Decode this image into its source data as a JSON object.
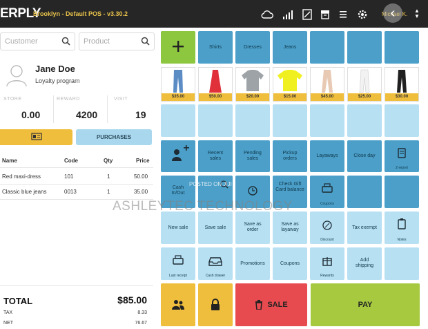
{
  "topbar": {
    "logo": "ERPLY",
    "title": "Brooklyn - Default POS - v3.30.2",
    "user": "Michael K.",
    "back_icon": "‹"
  },
  "search": {
    "customer_placeholder": "Customer",
    "product_placeholder": "Product"
  },
  "customer": {
    "name": "Jane Doe",
    "program": "Loyalty program",
    "stats": [
      {
        "label": "STORE",
        "value": "0.00"
      },
      {
        "label": "REWARD",
        "value": "4200"
      },
      {
        "label": "VISIT",
        "value": "19"
      }
    ],
    "purchases_label": "PURCHASES"
  },
  "cart": {
    "headers": {
      "name": "Name",
      "code": "Code",
      "qty": "Qty",
      "price": "Price"
    },
    "rows": [
      {
        "name": "Red maxi-dress",
        "code": "101",
        "qty": "1",
        "price": "50.00"
      },
      {
        "name": "Classic blue jeans",
        "code": "0013",
        "qty": "1",
        "price": "35.00"
      }
    ],
    "total_label": "TOTAL",
    "total_value": "$85.00",
    "tax_label": "TAX",
    "tax_value": "8.33",
    "net_label": "NET",
    "net_value": "76.67"
  },
  "categories": [
    "Shirts",
    "Dresses",
    "Jeans"
  ],
  "products": [
    {
      "price": "$35.00",
      "icon": "jeans-icon",
      "color": "#5b8cc4"
    },
    {
      "price": "$50.00",
      "icon": "dress-icon",
      "color": "#e0303a"
    },
    {
      "price": "$20.00",
      "icon": "shirt-icon",
      "color": "#9ea3a8"
    },
    {
      "price": "$15.00",
      "icon": "shirt-icon",
      "color": "#f0f020"
    },
    {
      "price": "$45.00",
      "icon": "pants-icon",
      "color": "#e8c9b4"
    },
    {
      "price": "$25.00",
      "icon": "pants-icon",
      "color": "#f2f2f2"
    },
    {
      "price": "$30.00",
      "icon": "pants-icon",
      "color": "#202020"
    }
  ],
  "actions_row1": {
    "recent": "Recent sales",
    "pending": "Pending sales",
    "pickup": "Pickup orders",
    "layaways": "Layaways",
    "close_day": "Close day",
    "z_report": "Z-report"
  },
  "actions_row2": {
    "cash": "Cash In/Out",
    "giftcard": "Check Gift Card balance",
    "coupons_small": "Coupons"
  },
  "actions_row3": {
    "new_sale": "New sale",
    "save_sale": "Save sale",
    "save_order": "Save as order",
    "save_layaway": "Save as layaway",
    "discount": "Discount",
    "tax_exempt": "Tax exempt",
    "notes": "Notes"
  },
  "actions_row4": {
    "last_receipt": "Last receipt",
    "cash_drawer": "Cash drawer",
    "promotions": "Promotions",
    "coupons": "Coupons",
    "rewards": "Rewards",
    "add_shipping": "Add shipping"
  },
  "bottom": {
    "sale": "SALE",
    "pay": "PAY"
  },
  "colors": {
    "topbar": "#262626",
    "accent_yellow": "#f0be3d",
    "tile_dark": "#4b9fc9",
    "tile_light": "#b7e0f3",
    "add_green": "#8dc63f",
    "sale_red": "#e84b4f",
    "pay_green": "#a6c93f"
  },
  "watermark": "ASHLEYTEC TECHNOLOGY",
  "watermark_small": "POSTED ON JIJI"
}
